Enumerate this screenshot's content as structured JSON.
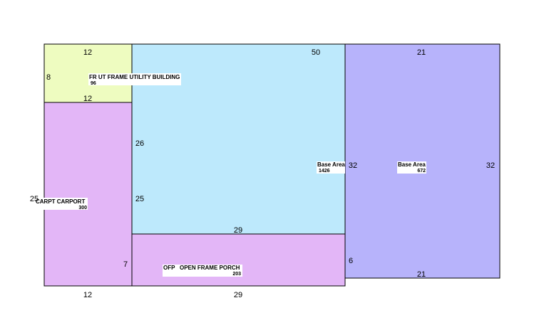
{
  "areas": [
    {
      "label": "FR UT FRAME UTILITY BUILDING",
      "area": "96",
      "dimensions": [
        "12",
        "8",
        "12"
      ]
    },
    {
      "label": "CARPT CARPORT",
      "area": "300",
      "dimensions": [
        "25",
        "12",
        "7",
        "25"
      ]
    },
    {
      "label": "Base Area",
      "area": "1426",
      "dimensions": [
        "50",
        "26",
        "32",
        "29"
      ]
    },
    {
      "label": "OFP   OPEN FRAME PORCH",
      "area": "203",
      "dimensions": [
        "29",
        "6"
      ]
    },
    {
      "label": "Base Area",
      "area": "672",
      "dimensions": [
        "21",
        "32",
        "21"
      ]
    }
  ]
}
